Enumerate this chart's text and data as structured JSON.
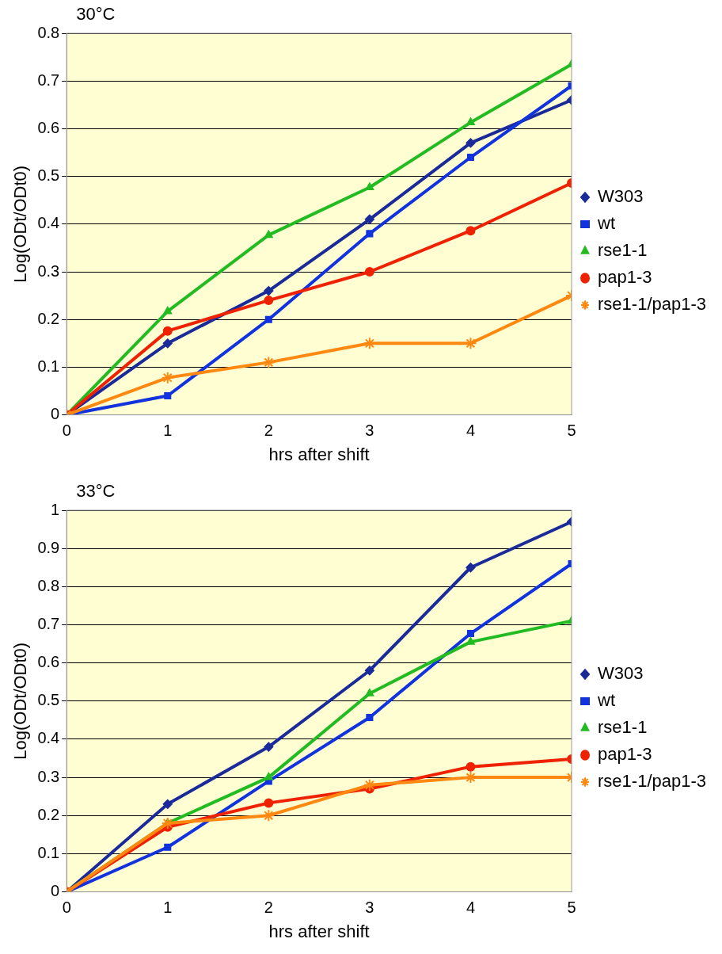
{
  "chart_data": [
    {
      "type": "line",
      "title": "30°C",
      "xlabel": "hrs after shift",
      "ylabel": "Log(ODt/ODt0)",
      "x": [
        0,
        1,
        2,
        3,
        4,
        5
      ],
      "series": [
        {
          "name": "W303",
          "color": "#1a2b99",
          "marker": "diamond",
          "values": [
            0,
            0.15,
            0.26,
            0.41,
            0.57,
            0.66
          ]
        },
        {
          "name": "wt",
          "color": "#1133dd",
          "marker": "square",
          "values": [
            0,
            0.04,
            0.2,
            0.38,
            0.54,
            0.69
          ]
        },
        {
          "name": "rse1-1",
          "color": "#22bb22",
          "marker": "triangle",
          "values": [
            0,
            0.217,
            0.377,
            0.477,
            0.613,
            0.735
          ]
        },
        {
          "name": "pap1-3",
          "color": "#ee2200",
          "marker": "circle",
          "values": [
            0,
            0.176,
            0.24,
            0.3,
            0.386,
            0.486
          ]
        },
        {
          "name": "rse1-1/pap1-3",
          "color": "#ff8811",
          "marker": "cross",
          "values": [
            0,
            0.078,
            0.11,
            0.15,
            0.15,
            0.25
          ]
        }
      ],
      "xlim": [
        0,
        5
      ],
      "xticks": [
        0,
        1,
        2,
        3,
        4,
        5
      ],
      "ylim": [
        0,
        0.8
      ],
      "yticks": [
        0,
        0.1,
        0.2,
        0.3,
        0.4,
        0.5,
        0.6,
        0.7,
        0.8
      ],
      "grid": "y",
      "legend": "right",
      "line_style": "solid"
    },
    {
      "type": "line",
      "title": "33°C",
      "xlabel": "hrs after shift",
      "ylabel": "Log(ODt/ODt0)",
      "x": [
        0,
        1,
        2,
        3,
        4,
        5
      ],
      "series": [
        {
          "name": "W303",
          "color": "#1a2b99",
          "marker": "diamond",
          "values": [
            0,
            0.23,
            0.38,
            0.58,
            0.85,
            0.97
          ]
        },
        {
          "name": "wt",
          "color": "#1133dd",
          "marker": "square",
          "values": [
            0,
            0.117,
            0.29,
            0.457,
            0.677,
            0.86
          ]
        },
        {
          "name": "rse1-1",
          "color": "#22bb22",
          "marker": "triangle",
          "values": [
            0,
            0.18,
            0.3,
            0.52,
            0.655,
            0.71
          ]
        },
        {
          "name": "pap1-3",
          "color": "#ee2200",
          "marker": "circle",
          "values": [
            0,
            0.17,
            0.233,
            0.27,
            0.328,
            0.348
          ]
        },
        {
          "name": "rse1-1/pap1-3",
          "color": "#ff8811",
          "marker": "cross",
          "values": [
            0,
            0.18,
            0.2,
            0.28,
            0.3,
            0.3
          ]
        }
      ],
      "xlim": [
        0,
        5
      ],
      "xticks": [
        0,
        1,
        2,
        3,
        4,
        5
      ],
      "ylim": [
        0,
        1
      ],
      "yticks": [
        0,
        0.1,
        0.2,
        0.3,
        0.4,
        0.5,
        0.6,
        0.7,
        0.8,
        0.9,
        1
      ],
      "grid": "y",
      "legend": "right",
      "line_style": "solid"
    }
  ]
}
